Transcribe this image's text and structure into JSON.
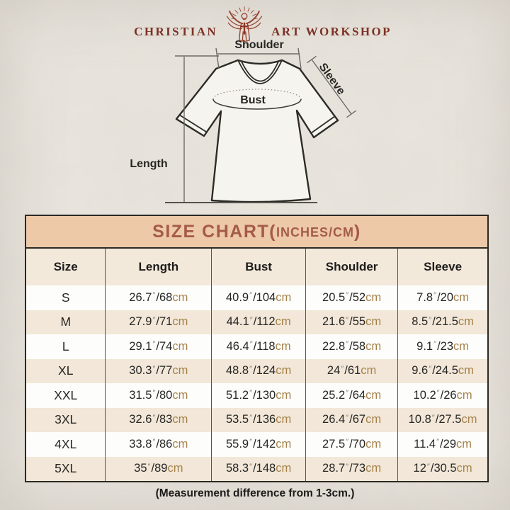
{
  "brand": {
    "text_left": "CHRISTIAN",
    "text_right": "ART WORKSHOP",
    "logo_icon": "jesus-rays-icon"
  },
  "diagram": {
    "shoulder_label": "Shoulder",
    "sleeve_label": "Sleeve",
    "bust_label": "Bust",
    "length_label": "Length"
  },
  "size_chart": {
    "title": "SIZE CHART",
    "paren_open": "(",
    "units_note": "INCHES/CM",
    "paren_close": ")",
    "columns": [
      "Size",
      "Length",
      "Bust",
      "Shoulder",
      "Sleeve"
    ],
    "units": {
      "inch_mark": "″",
      "separator": "/",
      "cm_label": "cm"
    },
    "rows": [
      {
        "size": "S",
        "length": {
          "in": "26.7",
          "cm": "68"
        },
        "bust": {
          "in": "40.9",
          "cm": "104"
        },
        "shoulder": {
          "in": "20.5",
          "cm": "52"
        },
        "sleeve": {
          "in": "7.8",
          "cm": "20"
        }
      },
      {
        "size": "M",
        "length": {
          "in": "27.9",
          "cm": "71"
        },
        "bust": {
          "in": "44.1",
          "cm": "112"
        },
        "shoulder": {
          "in": "21.6",
          "cm": "55"
        },
        "sleeve": {
          "in": "8.5",
          "cm": "21.5"
        }
      },
      {
        "size": "L",
        "length": {
          "in": "29.1",
          "cm": "74"
        },
        "bust": {
          "in": "46.4",
          "cm": "118"
        },
        "shoulder": {
          "in": "22.8",
          "cm": "58"
        },
        "sleeve": {
          "in": "9.1",
          "cm": "23"
        }
      },
      {
        "size": "XL",
        "length": {
          "in": "30.3",
          "cm": "77"
        },
        "bust": {
          "in": "48.8",
          "cm": "124"
        },
        "shoulder": {
          "in": "24",
          "cm": "61"
        },
        "sleeve": {
          "in": "9.6",
          "cm": "24.5"
        }
      },
      {
        "size": "XXL",
        "length": {
          "in": "31.5",
          "cm": "80"
        },
        "bust": {
          "in": "51.2",
          "cm": "130"
        },
        "shoulder": {
          "in": "25.2",
          "cm": "64"
        },
        "sleeve": {
          "in": "10.2",
          "cm": "26"
        }
      },
      {
        "size": "3XL",
        "length": {
          "in": "32.6",
          "cm": "83"
        },
        "bust": {
          "in": "53.5",
          "cm": "136"
        },
        "shoulder": {
          "in": "26.4",
          "cm": "67"
        },
        "sleeve": {
          "in": "10.8",
          "cm": "27.5"
        }
      },
      {
        "size": "4XL",
        "length": {
          "in": "33.8",
          "cm": "86"
        },
        "bust": {
          "in": "55.9",
          "cm": "142"
        },
        "shoulder": {
          "in": "27.5",
          "cm": "70"
        },
        "sleeve": {
          "in": "11.4",
          "cm": "29"
        }
      },
      {
        "size": "5XL",
        "length": {
          "in": "35",
          "cm": "89"
        },
        "bust": {
          "in": "58.3",
          "cm": "148"
        },
        "shoulder": {
          "in": "28.7",
          "cm": "73"
        },
        "sleeve": {
          "in": "12",
          "cm": "30.5"
        }
      }
    ]
  },
  "footnote": "(Measurement difference from 1-3cm.)",
  "colors": {
    "brand_red": "#7c3125",
    "band_bg": "#edc9a8",
    "band_text": "#a45b48",
    "header_bg": "#f3e9db",
    "row_beige": "#f2e7d8",
    "row_white": "#fdfdfc",
    "cm_unit": "#a5824a"
  },
  "chart_data": {
    "type": "table",
    "title": "SIZE CHART(INCHES/CM)",
    "columns": [
      "Size",
      "Length",
      "Bust",
      "Shoulder",
      "Sleeve"
    ],
    "rows": [
      [
        "S",
        "26.7″/68cm",
        "40.9″/104cm",
        "20.5″/52cm",
        "7.8″/20cm"
      ],
      [
        "M",
        "27.9″/71cm",
        "44.1″/112cm",
        "21.6″/55cm",
        "8.5″/21.5cm"
      ],
      [
        "L",
        "29.1″/74cm",
        "46.4″/118cm",
        "22.8″/58cm",
        "9.1″/23cm"
      ],
      [
        "XL",
        "30.3″/77cm",
        "48.8″/124cm",
        "24″/61cm",
        "9.6″/24.5cm"
      ],
      [
        "XXL",
        "31.5″/80cm",
        "51.2″/130cm",
        "25.2″/64cm",
        "10.2″/26cm"
      ],
      [
        "3XL",
        "32.6″/83cm",
        "53.5″/136cm",
        "26.4″/67cm",
        "10.8″/27.5cm"
      ],
      [
        "4XL",
        "33.8″/86cm",
        "55.9″/142cm",
        "27.5″/70cm",
        "11.4″/29cm"
      ],
      [
        "5XL",
        "35″/89cm",
        "58.3″/148cm",
        "28.7″/73cm",
        "12″/30.5cm"
      ]
    ],
    "footnote": "(Measurement difference from 1-3cm.)"
  }
}
